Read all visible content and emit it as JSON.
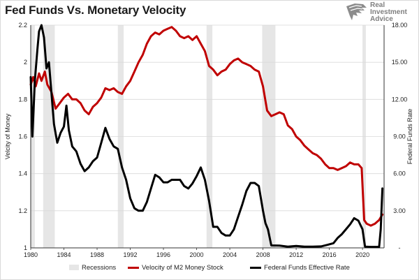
{
  "title": "Fed Funds Vs. Monetary Velocity",
  "logo": {
    "line1": "Real",
    "line2": "Investment",
    "line3": "Advice",
    "icon": "eagle-icon"
  },
  "colors": {
    "velocity": "#c00000",
    "fedfunds": "#000000",
    "recession": "#e6e6e6",
    "grid": "#d9d9d9",
    "axis": "#333333"
  },
  "chart_data": {
    "type": "line",
    "xlim": [
      1980,
      2022.6
    ],
    "x_ticks": [
      "1980",
      "1984",
      "1988",
      "1992",
      "1996",
      "2000",
      "2004",
      "2008",
      "2012",
      "2016",
      "2020"
    ],
    "y_left": {
      "label": "Velcity of Money",
      "lim": [
        1.0,
        2.2
      ],
      "ticks": [
        "1",
        "1.2",
        "1.4",
        "1.6",
        "1.8",
        "2",
        "2.2"
      ]
    },
    "y_right": {
      "label": "Federal Funds Rate",
      "lim": [
        0,
        18
      ],
      "ticks": [
        "-",
        "3.00",
        "6.00",
        "9.00",
        "12.00",
        "15.00",
        "18.00"
      ]
    },
    "grid": "horizontal",
    "legend_position": "bottom",
    "recessions": [
      [
        1980.0,
        1980.5
      ],
      [
        1981.5,
        1982.9
      ],
      [
        1990.5,
        1991.2
      ],
      [
        2001.2,
        2001.9
      ],
      [
        2007.9,
        2009.5
      ],
      [
        2020.0,
        2020.4
      ]
    ],
    "series": [
      {
        "name": "Velocity of M2 Money Stock",
        "axis": "left",
        "x": [
          1980.0,
          1980.3,
          1980.6,
          1981.0,
          1981.3,
          1981.7,
          1982.0,
          1982.5,
          1983.0,
          1983.5,
          1984.0,
          1984.5,
          1985.0,
          1985.5,
          1986.0,
          1986.5,
          1987.0,
          1987.5,
          1988.0,
          1988.5,
          1989.0,
          1989.5,
          1990.0,
          1990.5,
          1991.0,
          1991.5,
          1992.0,
          1992.5,
          1993.0,
          1993.5,
          1994.0,
          1994.5,
          1995.0,
          1995.5,
          1996.0,
          1996.5,
          1997.0,
          1997.5,
          1998.0,
          1998.5,
          1999.0,
          1999.5,
          2000.0,
          2000.5,
          2001.0,
          2001.5,
          2002.0,
          2002.5,
          2003.0,
          2003.5,
          2004.0,
          2004.5,
          2005.0,
          2005.5,
          2006.0,
          2006.5,
          2007.0,
          2007.5,
          2008.0,
          2008.5,
          2009.0,
          2009.5,
          2010.0,
          2010.5,
          2011.0,
          2011.5,
          2012.0,
          2012.5,
          2013.0,
          2013.5,
          2014.0,
          2014.5,
          2015.0,
          2015.5,
          2016.0,
          2016.5,
          2017.0,
          2017.5,
          2018.0,
          2018.5,
          2019.0,
          2019.5,
          2019.9,
          2020.2,
          2020.5,
          2021.0,
          2021.5,
          2022.0,
          2022.4
        ],
        "values": [
          1.88,
          1.92,
          1.87,
          1.94,
          1.9,
          1.95,
          1.88,
          1.84,
          1.75,
          1.78,
          1.81,
          1.83,
          1.8,
          1.8,
          1.78,
          1.74,
          1.72,
          1.76,
          1.78,
          1.81,
          1.86,
          1.85,
          1.86,
          1.84,
          1.83,
          1.87,
          1.9,
          1.95,
          2.0,
          2.04,
          2.1,
          2.14,
          2.16,
          2.15,
          2.17,
          2.18,
          2.19,
          2.17,
          2.14,
          2.13,
          2.14,
          2.12,
          2.14,
          2.1,
          2.06,
          1.98,
          1.96,
          1.93,
          1.95,
          1.96,
          1.99,
          2.01,
          2.02,
          2.0,
          1.99,
          1.98,
          1.96,
          1.95,
          1.87,
          1.74,
          1.71,
          1.72,
          1.73,
          1.72,
          1.66,
          1.64,
          1.6,
          1.58,
          1.55,
          1.53,
          1.51,
          1.5,
          1.48,
          1.45,
          1.43,
          1.43,
          1.42,
          1.43,
          1.44,
          1.46,
          1.45,
          1.45,
          1.43,
          1.15,
          1.13,
          1.12,
          1.13,
          1.15,
          1.18
        ]
      },
      {
        "name": "Federal Funds Effective Rate",
        "axis": "right",
        "x": [
          1980.0,
          1980.2,
          1980.5,
          1980.8,
          1981.0,
          1981.3,
          1981.6,
          1981.9,
          1982.2,
          1982.5,
          1982.8,
          1983.2,
          1983.6,
          1984.0,
          1984.3,
          1984.6,
          1985.0,
          1985.5,
          1986.0,
          1986.5,
          1987.0,
          1987.5,
          1988.0,
          1988.5,
          1989.0,
          1989.5,
          1990.0,
          1990.5,
          1991.0,
          1991.5,
          1992.0,
          1992.5,
          1993.0,
          1993.5,
          1994.0,
          1994.5,
          1995.0,
          1995.5,
          1996.0,
          1996.5,
          1997.0,
          1997.5,
          1998.0,
          1998.5,
          1999.0,
          1999.5,
          2000.0,
          2000.5,
          2001.0,
          2001.5,
          2002.0,
          2002.5,
          2003.0,
          2003.5,
          2004.0,
          2004.5,
          2005.0,
          2005.5,
          2006.0,
          2006.5,
          2007.0,
          2007.5,
          2008.0,
          2008.3,
          2008.6,
          2009.0,
          2010.0,
          2011.0,
          2012.0,
          2013.0,
          2014.0,
          2015.0,
          2015.8,
          2016.5,
          2017.0,
          2017.5,
          2018.0,
          2018.5,
          2019.0,
          2019.5,
          2020.0,
          2020.3,
          2021.0,
          2021.5,
          2022.0,
          2022.2,
          2022.4
        ],
        "values": [
          13.8,
          9.0,
          13.5,
          16.0,
          17.5,
          18.0,
          17.0,
          14.5,
          15.0,
          12.5,
          10.0,
          8.5,
          9.3,
          9.8,
          11.5,
          9.5,
          8.2,
          7.8,
          6.8,
          6.2,
          6.5,
          7.0,
          7.3,
          8.5,
          9.7,
          8.8,
          8.2,
          8.0,
          6.5,
          5.5,
          4.0,
          3.2,
          3.0,
          3.0,
          3.7,
          4.8,
          5.9,
          5.7,
          5.3,
          5.3,
          5.5,
          5.5,
          5.5,
          5.0,
          4.8,
          5.2,
          5.8,
          6.5,
          5.5,
          3.8,
          1.7,
          1.7,
          1.2,
          1.0,
          1.0,
          1.5,
          2.5,
          3.5,
          4.6,
          5.25,
          5.25,
          5.0,
          3.0,
          2.0,
          1.5,
          0.2,
          0.18,
          0.1,
          0.15,
          0.1,
          0.1,
          0.12,
          0.25,
          0.38,
          0.8,
          1.1,
          1.5,
          1.9,
          2.4,
          2.2,
          1.5,
          0.1,
          0.08,
          0.08,
          0.08,
          1.5,
          4.8
        ]
      }
    ]
  },
  "legend": [
    {
      "label": "Recessions",
      "kind": "box"
    },
    {
      "label": "Velocity of M2 Money Stock",
      "kind": "line-red"
    },
    {
      "label": "Federal Funds Effective Rate",
      "kind": "line-black"
    }
  ]
}
